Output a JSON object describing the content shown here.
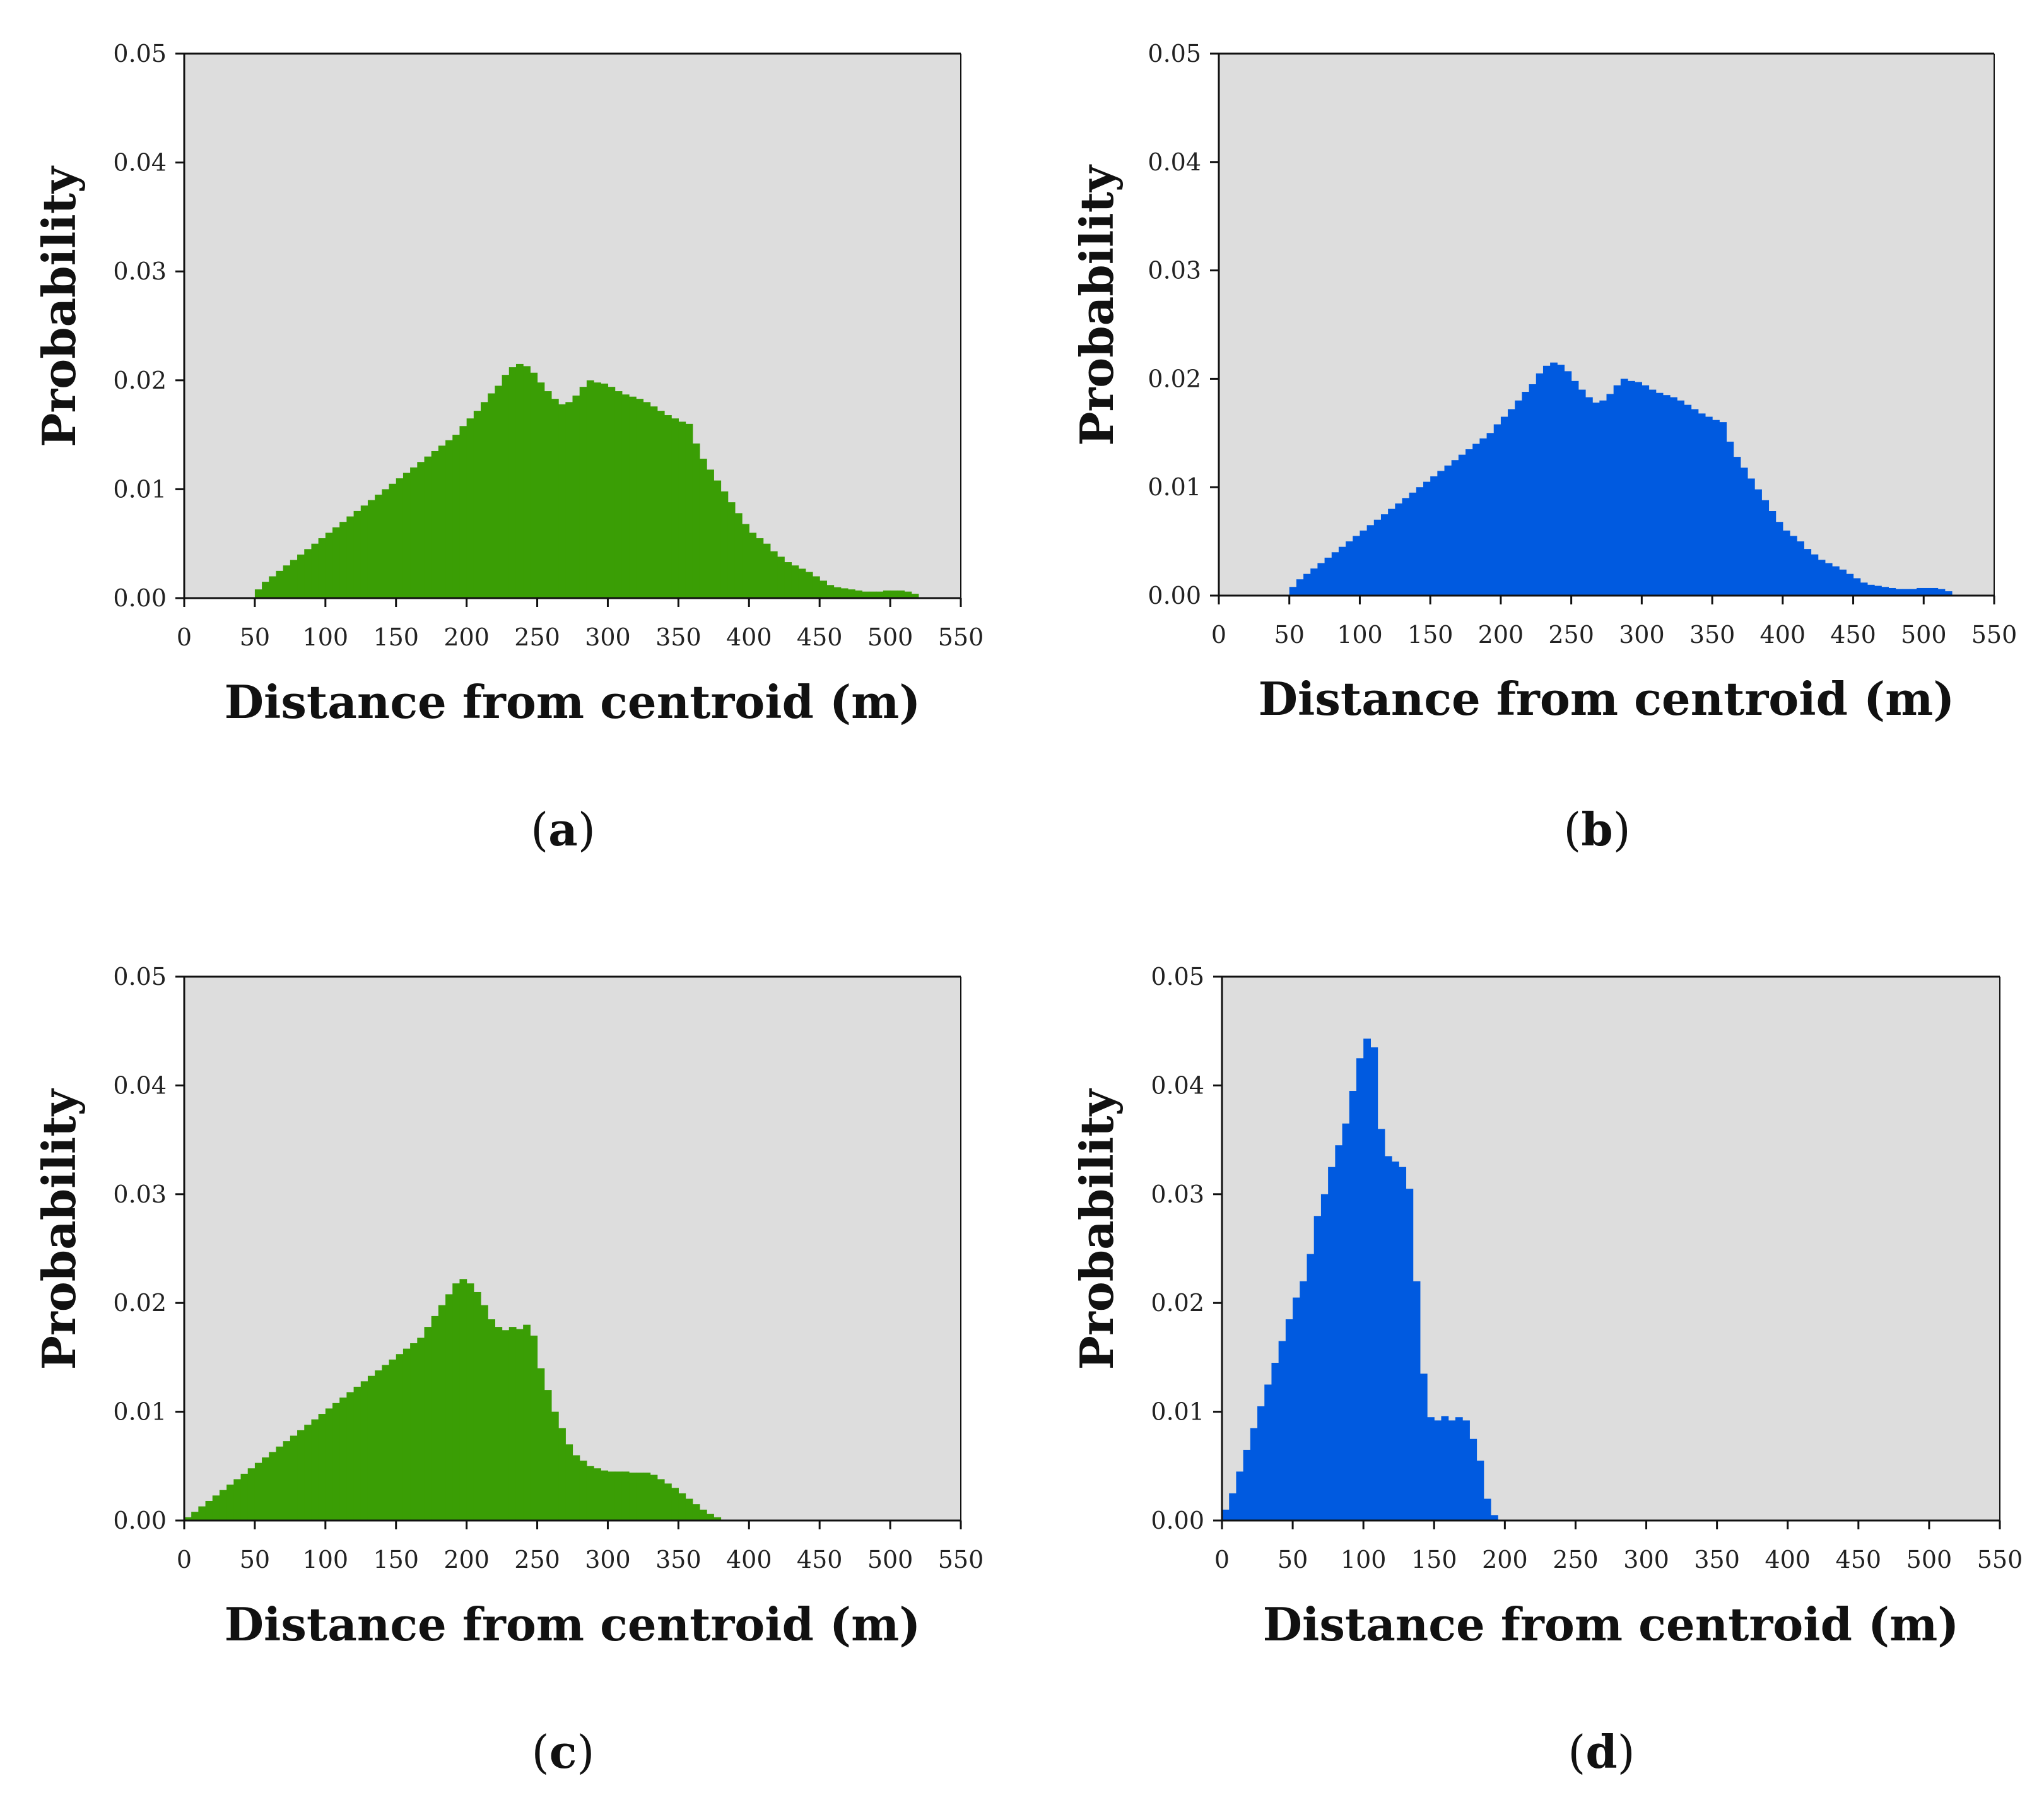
{
  "figure": {
    "panel_labels": [
      "a",
      "b",
      "c",
      "d"
    ],
    "colors": {
      "green": "#3a9e05",
      "blue": "#005ae0",
      "plot_bg": "#dddddd"
    }
  },
  "chart_data": [
    {
      "panel": "a",
      "type": "bar",
      "title": "",
      "xlabel": "Distance from centroid (m)",
      "ylabel": "Probability",
      "xlim": [
        0,
        550
      ],
      "ylim": [
        0,
        0.05
      ],
      "xticks": [
        "0",
        "50",
        "100",
        "150",
        "200",
        "250",
        "300",
        "350",
        "400",
        "450",
        "500",
        "550"
      ],
      "yticks": [
        "0.00",
        "0.01",
        "0.02",
        "0.03",
        "0.04",
        "0.05"
      ],
      "color": "#3a9e05",
      "bin_width": 5,
      "x": [
        50,
        55,
        60,
        65,
        70,
        75,
        80,
        85,
        90,
        95,
        100,
        105,
        110,
        115,
        120,
        125,
        130,
        135,
        140,
        145,
        150,
        155,
        160,
        165,
        170,
        175,
        180,
        185,
        190,
        195,
        200,
        205,
        210,
        215,
        220,
        225,
        230,
        235,
        240,
        245,
        250,
        255,
        260,
        265,
        270,
        275,
        280,
        285,
        290,
        295,
        300,
        305,
        310,
        315,
        320,
        325,
        330,
        335,
        340,
        345,
        350,
        355,
        360,
        365,
        370,
        375,
        380,
        385,
        390,
        395,
        400,
        405,
        410,
        415,
        420,
        425,
        430,
        435,
        440,
        445,
        450,
        455,
        460,
        465,
        470,
        475,
        480,
        485,
        490,
        495,
        500,
        505,
        510,
        515
      ],
      "values": [
        0.0008,
        0.0015,
        0.002,
        0.0025,
        0.003,
        0.0035,
        0.004,
        0.0045,
        0.005,
        0.0055,
        0.006,
        0.0065,
        0.007,
        0.0075,
        0.008,
        0.0085,
        0.009,
        0.0095,
        0.01,
        0.0105,
        0.011,
        0.0115,
        0.012,
        0.0125,
        0.013,
        0.0135,
        0.014,
        0.0145,
        0.015,
        0.0158,
        0.0165,
        0.0172,
        0.018,
        0.0188,
        0.0195,
        0.0205,
        0.0212,
        0.0215,
        0.0213,
        0.0207,
        0.0198,
        0.019,
        0.0183,
        0.0178,
        0.018,
        0.0186,
        0.0194,
        0.02,
        0.0198,
        0.0197,
        0.0194,
        0.019,
        0.0187,
        0.0185,
        0.0183,
        0.018,
        0.0176,
        0.0172,
        0.0168,
        0.0165,
        0.0162,
        0.016,
        0.0142,
        0.0128,
        0.0118,
        0.0108,
        0.0098,
        0.0088,
        0.0078,
        0.0068,
        0.006,
        0.0055,
        0.005,
        0.0043,
        0.0038,
        0.0033,
        0.003,
        0.0027,
        0.0024,
        0.002,
        0.0016,
        0.0012,
        0.001,
        0.0009,
        0.0008,
        0.0007,
        0.0006,
        0.0006,
        0.0006,
        0.0007,
        0.0007,
        0.0007,
        0.0006,
        0.0004
      ]
    },
    {
      "panel": "b",
      "type": "bar",
      "title": "",
      "xlabel": "Distance from centroid (m)",
      "ylabel": "Probability",
      "xlim": [
        0,
        550
      ],
      "ylim": [
        0,
        0.05
      ],
      "xticks": [
        "0",
        "50",
        "100",
        "150",
        "200",
        "250",
        "300",
        "350",
        "400",
        "450",
        "500",
        "550"
      ],
      "yticks": [
        "0.00",
        "0.01",
        "0.02",
        "0.03",
        "0.04",
        "0.05"
      ],
      "color": "#005ae0",
      "bin_width": 5,
      "x": [
        50,
        55,
        60,
        65,
        70,
        75,
        80,
        85,
        90,
        95,
        100,
        105,
        110,
        115,
        120,
        125,
        130,
        135,
        140,
        145,
        150,
        155,
        160,
        165,
        170,
        175,
        180,
        185,
        190,
        195,
        200,
        205,
        210,
        215,
        220,
        225,
        230,
        235,
        240,
        245,
        250,
        255,
        260,
        265,
        270,
        275,
        280,
        285,
        290,
        295,
        300,
        305,
        310,
        315,
        320,
        325,
        330,
        335,
        340,
        345,
        350,
        355,
        360,
        365,
        370,
        375,
        380,
        385,
        390,
        395,
        400,
        405,
        410,
        415,
        420,
        425,
        430,
        435,
        440,
        445,
        450,
        455,
        460,
        465,
        470,
        475,
        480,
        485,
        490,
        495,
        500,
        505,
        510,
        515
      ],
      "values": [
        0.0008,
        0.0015,
        0.002,
        0.0025,
        0.003,
        0.0035,
        0.004,
        0.0045,
        0.005,
        0.0055,
        0.006,
        0.0065,
        0.007,
        0.0075,
        0.008,
        0.0085,
        0.009,
        0.0095,
        0.01,
        0.0105,
        0.011,
        0.0115,
        0.012,
        0.0125,
        0.013,
        0.0135,
        0.014,
        0.0145,
        0.015,
        0.0158,
        0.0165,
        0.0172,
        0.018,
        0.0188,
        0.0195,
        0.0205,
        0.0212,
        0.0215,
        0.0213,
        0.0207,
        0.0198,
        0.019,
        0.0183,
        0.0178,
        0.018,
        0.0186,
        0.0194,
        0.02,
        0.0198,
        0.0197,
        0.0194,
        0.019,
        0.0187,
        0.0185,
        0.0183,
        0.018,
        0.0176,
        0.0172,
        0.0168,
        0.0165,
        0.0162,
        0.016,
        0.0142,
        0.0128,
        0.0118,
        0.0108,
        0.0098,
        0.0088,
        0.0078,
        0.0068,
        0.006,
        0.0055,
        0.005,
        0.0043,
        0.0038,
        0.0033,
        0.003,
        0.0027,
        0.0024,
        0.002,
        0.0016,
        0.0012,
        0.001,
        0.0009,
        0.0008,
        0.0007,
        0.0006,
        0.0006,
        0.0006,
        0.0007,
        0.0007,
        0.0007,
        0.0006,
        0.0004
      ]
    },
    {
      "panel": "c",
      "type": "bar",
      "title": "",
      "xlabel": "Distance from centroid (m)",
      "ylabel": "Probability",
      "xlim": [
        0,
        550
      ],
      "ylim": [
        0,
        0.05
      ],
      "xticks": [
        "0",
        "50",
        "100",
        "150",
        "200",
        "250",
        "300",
        "350",
        "400",
        "450",
        "500",
        "550"
      ],
      "yticks": [
        "0.00",
        "0.01",
        "0.02",
        "0.03",
        "0.04",
        "0.05"
      ],
      "color": "#3a9e05",
      "bin_width": 5,
      "x": [
        0,
        5,
        10,
        15,
        20,
        25,
        30,
        35,
        40,
        45,
        50,
        55,
        60,
        65,
        70,
        75,
        80,
        85,
        90,
        95,
        100,
        105,
        110,
        115,
        120,
        125,
        130,
        135,
        140,
        145,
        150,
        155,
        160,
        165,
        170,
        175,
        180,
        185,
        190,
        195,
        200,
        205,
        210,
        215,
        220,
        225,
        230,
        235,
        240,
        245,
        250,
        255,
        260,
        265,
        270,
        275,
        280,
        285,
        290,
        295,
        300,
        305,
        310,
        315,
        320,
        325,
        330,
        335,
        340,
        345,
        350,
        355,
        360,
        365,
        370,
        375
      ],
      "values": [
        0.0003,
        0.0008,
        0.0013,
        0.0018,
        0.0023,
        0.0028,
        0.0033,
        0.0038,
        0.0043,
        0.0048,
        0.0053,
        0.0058,
        0.0063,
        0.0068,
        0.0073,
        0.0078,
        0.0083,
        0.0088,
        0.0093,
        0.0098,
        0.0103,
        0.0108,
        0.0113,
        0.0118,
        0.0123,
        0.0128,
        0.0133,
        0.0138,
        0.0143,
        0.0148,
        0.0153,
        0.0158,
        0.0163,
        0.0168,
        0.0178,
        0.0188,
        0.0198,
        0.0208,
        0.0218,
        0.0222,
        0.0218,
        0.021,
        0.0198,
        0.0185,
        0.0178,
        0.0175,
        0.0178,
        0.0176,
        0.018,
        0.017,
        0.014,
        0.012,
        0.01,
        0.0085,
        0.007,
        0.006,
        0.0055,
        0.005,
        0.0048,
        0.0046,
        0.0045,
        0.0045,
        0.0045,
        0.0044,
        0.0044,
        0.0044,
        0.0042,
        0.0038,
        0.0034,
        0.003,
        0.0025,
        0.002,
        0.0015,
        0.001,
        0.0006,
        0.0003
      ]
    },
    {
      "panel": "d",
      "type": "bar",
      "title": "",
      "xlabel": "Distance from centroid (m)",
      "ylabel": "Probability",
      "xlim": [
        0,
        550
      ],
      "ylim": [
        0,
        0.05
      ],
      "xticks": [
        "0",
        "50",
        "100",
        "150",
        "200",
        "250",
        "300",
        "350",
        "400",
        "450",
        "500",
        "550"
      ],
      "yticks": [
        "0.00",
        "0.01",
        "0.02",
        "0.03",
        "0.04",
        "0.05"
      ],
      "color": "#005ae0",
      "bin_width": 5,
      "x": [
        0,
        5,
        10,
        15,
        20,
        25,
        30,
        35,
        40,
        45,
        50,
        55,
        60,
        65,
        70,
        75,
        80,
        85,
        90,
        95,
        100,
        105,
        110,
        115,
        120,
        125,
        130,
        135,
        140,
        145,
        150,
        155,
        160,
        165,
        170,
        175,
        180,
        185,
        190
      ],
      "values": [
        0.001,
        0.0025,
        0.0045,
        0.0065,
        0.0085,
        0.0105,
        0.0125,
        0.0145,
        0.0165,
        0.0185,
        0.0205,
        0.022,
        0.0245,
        0.028,
        0.03,
        0.0325,
        0.0345,
        0.0365,
        0.0395,
        0.0425,
        0.0443,
        0.0435,
        0.036,
        0.0335,
        0.033,
        0.0325,
        0.0305,
        0.022,
        0.0135,
        0.0095,
        0.0092,
        0.0096,
        0.0092,
        0.0095,
        0.0092,
        0.0075,
        0.0055,
        0.002,
        0.0005
      ]
    }
  ]
}
